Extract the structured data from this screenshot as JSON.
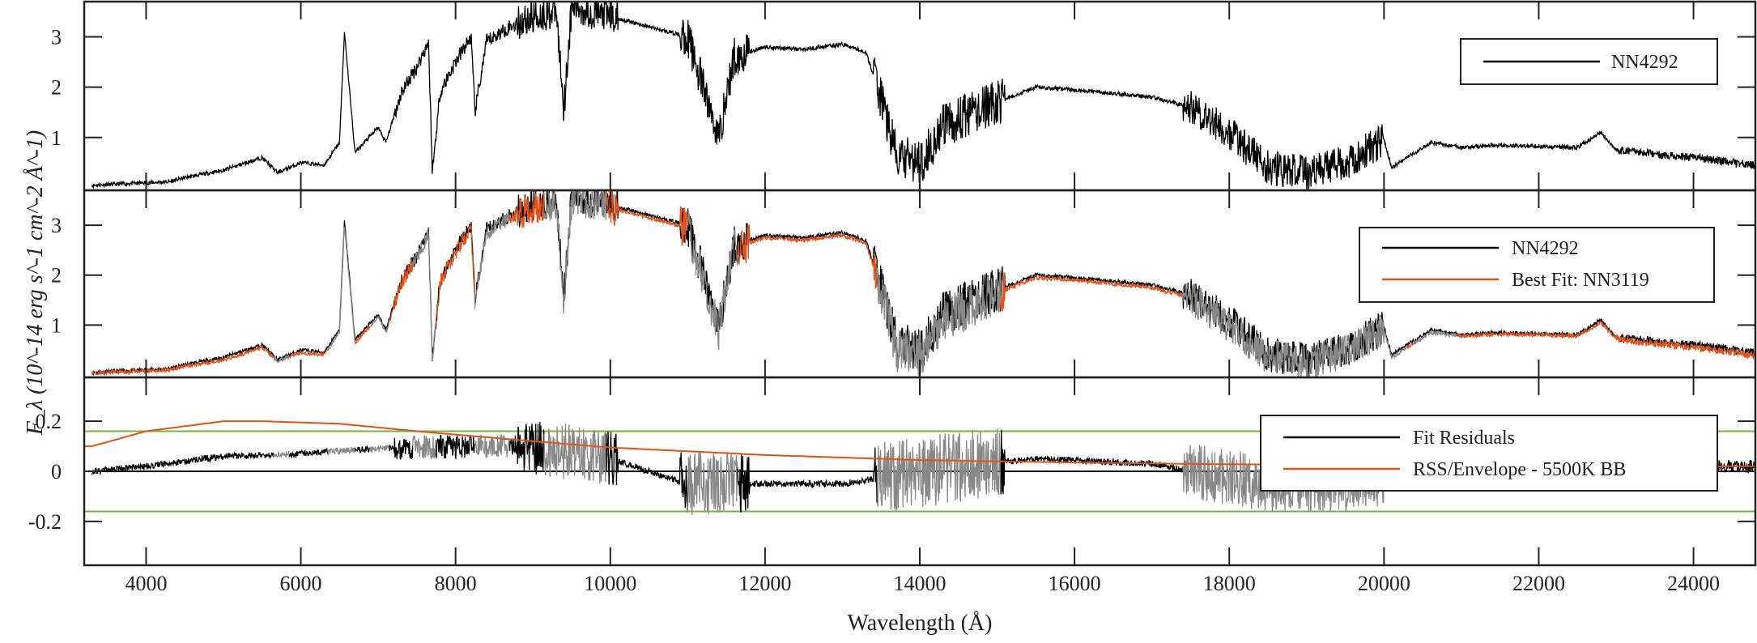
{
  "chart_data": {
    "type": "line",
    "xlabel": "Wavelength (Å)",
    "ylabel": "F_λ (10^-14 erg s^-1 cm^-2 Å^-1)",
    "xlim": [
      3200,
      24800
    ],
    "xticks": [
      4000,
      6000,
      8000,
      10000,
      12000,
      14000,
      16000,
      18000,
      20000,
      22000,
      24000
    ],
    "grid": false,
    "colors": {
      "observed": "#000000",
      "fit": "#e0531c",
      "masked": "#888888",
      "envelope": "#e0531c",
      "threshold": "#7ab33a"
    },
    "masked_regions": [
      [
        5650,
        5850
      ],
      [
        6350,
        6700
      ],
      [
        6900,
        7150
      ],
      [
        7450,
        7750
      ],
      [
        8250,
        8700
      ],
      [
        9150,
        9950
      ],
      [
        11000,
        11650
      ],
      [
        13450,
        15050
      ],
      [
        17400,
        20300
      ],
      [
        20400,
        20950
      ]
    ],
    "panels": [
      {
        "ylim": [
          -0.05,
          3.7
        ],
        "yticks": [
          1,
          2,
          3
        ],
        "legend": {
          "position": "top-right",
          "entries": [
            "NN4292"
          ]
        },
        "series": [
          {
            "name": "NN4292",
            "x": [
              3300,
              4000,
              4300,
              4500,
              5000,
              5500,
              5700,
              6000,
              6300,
              6500,
              6563,
              6700,
              7000,
              7100,
              7300,
              7500,
              7650,
              7700,
              7800,
              8000,
              8200,
              8250,
              8400,
              8700,
              9000,
              9300,
              9400,
              9500,
              10000,
              10500,
              11000,
              11200,
              11400,
              11600,
              12000,
              12500,
              13000,
              13300,
              13500,
              13700,
              14000,
              14300,
              14700,
              15000,
              15500,
              16000,
              17000,
              17500,
              18000,
              18500,
              19000,
              19500,
              20000,
              20100,
              20400,
              20600,
              21000,
              21500,
              22500,
              22800,
              23000,
              24000,
              24800
            ],
            "y": [
              0.05,
              0.1,
              0.12,
              0.2,
              0.35,
              0.6,
              0.3,
              0.5,
              0.45,
              0.9,
              3.1,
              0.7,
              1.2,
              0.9,
              1.9,
              2.4,
              2.9,
              0.3,
              1.9,
              2.5,
              3.0,
              1.5,
              2.9,
              3.2,
              3.4,
              3.5,
              1.6,
              3.6,
              3.4,
              3.2,
              3.0,
              2.0,
              1.0,
              2.6,
              2.8,
              2.75,
              2.85,
              2.7,
              1.8,
              0.6,
              0.5,
              1.2,
              1.5,
              1.7,
              2.0,
              1.95,
              1.8,
              1.6,
              1.1,
              0.4,
              0.3,
              0.5,
              0.95,
              0.4,
              0.7,
              0.9,
              0.8,
              0.85,
              0.8,
              1.1,
              0.75,
              0.6,
              0.45
            ]
          }
        ]
      },
      {
        "ylim": [
          -0.05,
          3.7
        ],
        "yticks": [
          1,
          2,
          3
        ],
        "legend": {
          "position": "top-right",
          "entries": [
            "NN4292",
            "Best Fit: NN3119"
          ]
        },
        "series": [
          {
            "name": "NN4292",
            "ref": "panels.0.series.0"
          },
          {
            "name": "Best Fit: NN3119",
            "x": [
              3300,
              4000,
              4300,
              4500,
              5000,
              5500,
              5700,
              6000,
              6300,
              6500,
              6563,
              6700,
              7000,
              7100,
              7300,
              7500,
              7650,
              7700,
              7800,
              8000,
              8200,
              8250,
              8400,
              8700,
              9000,
              9300,
              9400,
              9500,
              10000,
              10500,
              11000,
              11200,
              11400,
              11600,
              12000,
              12500,
              13000,
              13300,
              13500,
              13700,
              14000,
              14300,
              14700,
              15000,
              15500,
              16000,
              17000,
              17500,
              18000,
              18500,
              19000,
              19500,
              20000,
              20100,
              20400,
              20600,
              21000,
              21500,
              22500,
              22800,
              23000,
              24000,
              24800
            ],
            "y": [
              0.04,
              0.08,
              0.1,
              0.17,
              0.3,
              0.55,
              0.28,
              0.45,
              0.4,
              0.85,
              3.0,
              0.65,
              1.15,
              0.85,
              1.85,
              2.35,
              2.85,
              0.3,
              1.85,
              2.45,
              2.95,
              1.45,
              2.85,
              3.15,
              3.35,
              3.45,
              1.5,
              3.55,
              3.35,
              3.15,
              2.95,
              1.9,
              0.9,
              2.55,
              2.75,
              2.7,
              2.8,
              2.65,
              1.7,
              0.5,
              0.4,
              1.1,
              1.4,
              1.65,
              1.95,
              1.9,
              1.75,
              1.55,
              1.0,
              0.35,
              0.25,
              0.45,
              0.9,
              0.35,
              0.65,
              0.85,
              0.78,
              0.82,
              0.78,
              1.05,
              0.72,
              0.55,
              0.4
            ]
          }
        ]
      },
      {
        "ylim": [
          -0.375,
          0.375
        ],
        "yticks": [
          -0.2,
          0,
          0.2
        ],
        "ytick_labels": [
          "-0.2",
          "0",
          "0.2"
        ],
        "threshold_lines": [
          -0.16,
          0.16
        ],
        "zero_line": 0,
        "legend": {
          "position": "right",
          "entries": [
            "Fit Residuals",
            "RSS/Envelope - 5500K BB"
          ]
        },
        "series": [
          {
            "name": "Fit Residuals",
            "x": [
              3300,
              4000,
              5000,
              6000,
              7000,
              8000,
              9000,
              10000,
              11000,
              12000,
              13000,
              14000,
              15500,
              17000,
              18500,
              19500,
              20500,
              22000,
              24800
            ],
            "y": [
              0.0,
              0.02,
              0.06,
              0.07,
              0.09,
              0.1,
              0.1,
              0.05,
              -0.05,
              -0.05,
              -0.05,
              0.0,
              0.05,
              0.03,
              -0.05,
              -0.05,
              0.0,
              0.03,
              0.02
            ]
          },
          {
            "name": "RSS/Envelope - 5500K BB",
            "x": [
              3300,
              4000,
              5000,
              5500,
              6500,
              7500,
              9000,
              10000,
              12000,
              14000,
              16000,
              18000,
              20000,
              24800
            ],
            "y": [
              0.1,
              0.16,
              0.2,
              0.2,
              0.19,
              0.16,
              0.12,
              0.095,
              0.065,
              0.045,
              0.035,
              0.028,
              0.025,
              0.02
            ]
          }
        ]
      }
    ]
  }
}
